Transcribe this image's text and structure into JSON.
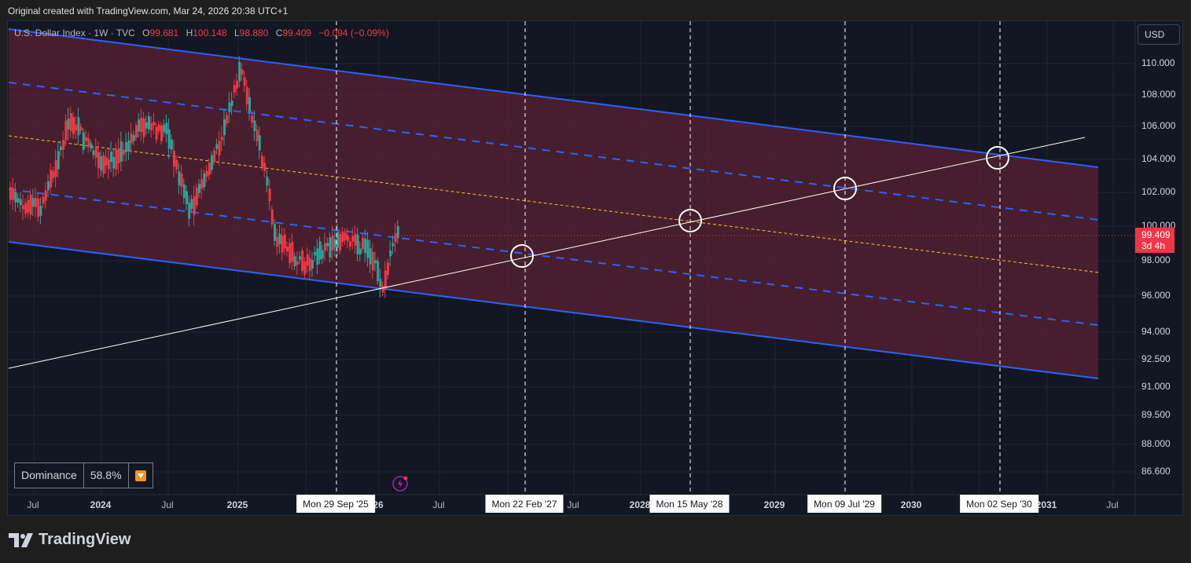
{
  "header": {
    "attribution": "Original created with TradingView.com, Mar 24, 2026 20:38 UTC+1"
  },
  "legend": {
    "symbol": "U.S. Dollar Index · 1W · TVC",
    "open_label": "O",
    "open": "99.681",
    "high_label": "H",
    "high": "100.148",
    "low_label": "L",
    "low": "98.880",
    "close_label": "C",
    "close": "99.409",
    "change": "−0.094 (−0.09%)"
  },
  "currency": "USD",
  "price_axis": [
    "110.000",
    "108.000",
    "106.000",
    "104.000",
    "102.000",
    "100.000",
    "98.000",
    "96.000",
    "94.000",
    "92.500",
    "91.000",
    "89.500",
    "88.000",
    "86.600"
  ],
  "current_price": {
    "value": "99.409",
    "countdown": "3d 4h"
  },
  "time_axis": [
    {
      "label": "Jul",
      "bold": false
    },
    {
      "label": "2024",
      "bold": true
    },
    {
      "label": "Jul",
      "bold": false
    },
    {
      "label": "2025",
      "bold": true
    },
    {
      "label": "26",
      "bold": true
    },
    {
      "label": "Jul",
      "bold": false
    },
    {
      "label": "Jul",
      "bold": false
    },
    {
      "label": "2028",
      "bold": true
    },
    {
      "label": "2029",
      "bold": true
    },
    {
      "label": "2030",
      "bold": true
    },
    {
      "label": "2031",
      "bold": true
    },
    {
      "label": "Jul",
      "bold": false
    }
  ],
  "vertical_markers": [
    "Mon 29 Sep '25",
    "Mon 22 Feb '27",
    "Mon 15 May '28",
    "Mon 09 Jul '29",
    "Mon 02 Sep '30"
  ],
  "dominance": {
    "label": "Dominance",
    "value": "58.8%",
    "icon": "down-arrow-orange-icon"
  },
  "branding": {
    "logo_text": "TradingView"
  },
  "colors": {
    "channel_blue": "#2962ff",
    "channel_fill": "#5a2232",
    "bear": "#f23645",
    "bull": "#26a69a",
    "median": "#f5c242"
  }
}
